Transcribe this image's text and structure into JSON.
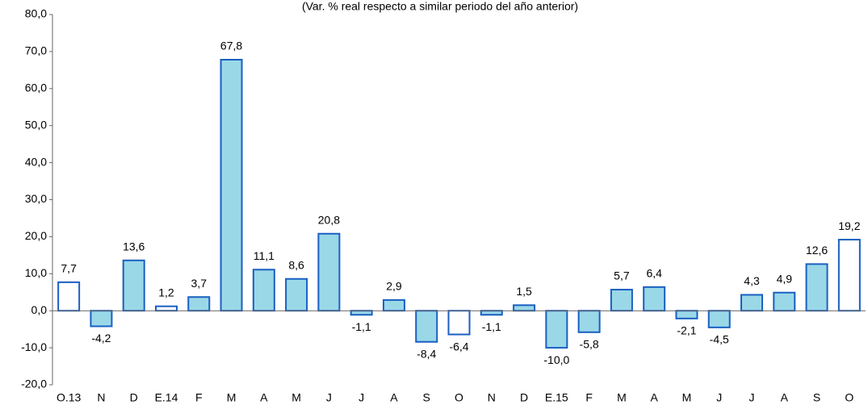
{
  "chart_data": {
    "type": "bar",
    "subtitle": "(Var. % real respecto a similar periodo del año anterior)",
    "categories": [
      "O.13",
      "N",
      "D",
      "E.14",
      "F",
      "M",
      "A",
      "M",
      "J",
      "J",
      "A",
      "S",
      "O",
      "N",
      "D",
      "E.15",
      "F",
      "M",
      "A",
      "M",
      "J",
      "J",
      "A",
      "S",
      "O"
    ],
    "values": [
      7.7,
      -4.2,
      13.6,
      1.2,
      3.7,
      67.8,
      11.1,
      8.6,
      20.8,
      -1.1,
      2.9,
      -8.4,
      -6.4,
      -1.1,
      1.5,
      -10.0,
      -5.8,
      5.7,
      6.4,
      -2.1,
      -4.5,
      4.3,
      4.9,
      12.6,
      19.2
    ],
    "value_labels": [
      "7,7",
      "-4,2",
      "13,6",
      "1,2",
      "3,7",
      "67,8",
      "11,1",
      "8,6",
      "20,8",
      "-1,1",
      "2,9",
      "-8,4",
      "-6,4",
      "-1,1",
      "1,5",
      "-10,0",
      "-5,8",
      "5,7",
      "6,4",
      "-2,1",
      "-4,5",
      "4,3",
      "4,9",
      "12,6",
      "19,2"
    ],
    "colors": [
      "#ffffff",
      "#9ad8e8",
      "#9ad8e8",
      "#ffffff",
      "#9ad8e8",
      "#9ad8e8",
      "#9ad8e8",
      "#9ad8e8",
      "#9ad8e8",
      "#9ad8e8",
      "#9ad8e8",
      "#9ad8e8",
      "#ffffff",
      "#9ad8e8",
      "#9ad8e8",
      "#9ad8e8",
      "#9ad8e8",
      "#9ad8e8",
      "#9ad8e8",
      "#9ad8e8",
      "#9ad8e8",
      "#9ad8e8",
      "#9ad8e8",
      "#9ad8e8",
      "#ffffff"
    ],
    "border_color": "#1a5fc2",
    "ylim": [
      -20,
      80
    ],
    "yticks": [
      {
        "value": -20,
        "label": "-20,0"
      },
      {
        "value": -10,
        "label": "-10,0"
      },
      {
        "value": 0,
        "label": "0,0"
      },
      {
        "value": 10,
        "label": "10,0"
      },
      {
        "value": 20,
        "label": "20,0"
      },
      {
        "value": 30,
        "label": "30,0"
      },
      {
        "value": 40,
        "label": "40,0"
      },
      {
        "value": 50,
        "label": "50,0"
      },
      {
        "value": 60,
        "label": "60,0"
      },
      {
        "value": 70,
        "label": "70,0"
      },
      {
        "value": 80,
        "label": "80,0"
      }
    ],
    "grid": false
  }
}
